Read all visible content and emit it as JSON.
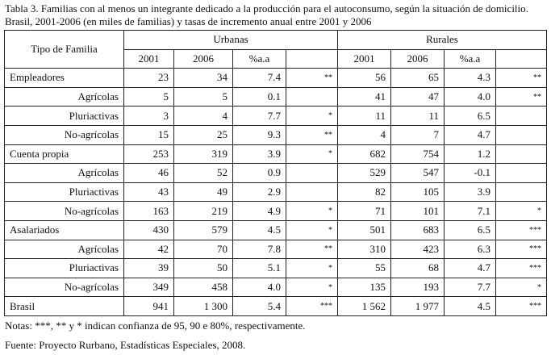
{
  "caption": "Tabla 3. Familias con al menos un integrante dedicado a la producción para el autoconsumo, según la situación de domicilio. Brasil, 2001-2006 (en miles de familias) y tasas de incremento anual entre 2001 y 2006",
  "header": {
    "row_label": "Tipo de Familia",
    "groups": [
      "Urbanas",
      "Rurales"
    ],
    "subcols": [
      "2001",
      "2006",
      "%a.a",
      ""
    ]
  },
  "rows": [
    {
      "label": "Empleadores",
      "sub": false,
      "u": [
        "23",
        "34",
        "7.4",
        "**"
      ],
      "r": [
        "56",
        "65",
        "4.3",
        "**"
      ]
    },
    {
      "label": "Agrícolas",
      "sub": true,
      "u": [
        "5",
        "5",
        "0.1",
        ""
      ],
      "r": [
        "41",
        "47",
        "4.0",
        "**"
      ]
    },
    {
      "label": "Pluriactivas",
      "sub": true,
      "u": [
        "3",
        "4",
        "7.7",
        "*"
      ],
      "r": [
        "11",
        "11",
        "6.5",
        ""
      ]
    },
    {
      "label": "No-agrícolas",
      "sub": true,
      "u": [
        "15",
        "25",
        "9.3",
        "**"
      ],
      "r": [
        "4",
        "7",
        "4.7",
        ""
      ]
    },
    {
      "label": "Cuenta propia",
      "sub": false,
      "u": [
        "253",
        "319",
        "3.9",
        "*"
      ],
      "r": [
        "682",
        "754",
        "1.2",
        ""
      ]
    },
    {
      "label": "Agrícolas",
      "sub": true,
      "u": [
        "46",
        "52",
        "0.9",
        ""
      ],
      "r": [
        "529",
        "547",
        "-0.1",
        ""
      ]
    },
    {
      "label": "Pluriactivas",
      "sub": true,
      "u": [
        "43",
        "49",
        "2.9",
        ""
      ],
      "r": [
        "82",
        "105",
        "3.9",
        ""
      ]
    },
    {
      "label": "No-agrícolas",
      "sub": true,
      "u": [
        "163",
        "219",
        "4.9",
        "*"
      ],
      "r": [
        "71",
        "101",
        "7.1",
        "*"
      ]
    },
    {
      "label": "Asalariados",
      "sub": false,
      "u": [
        "430",
        "579",
        "4.5",
        "*"
      ],
      "r": [
        "501",
        "683",
        "6.5",
        "***"
      ]
    },
    {
      "label": "Agrícolas",
      "sub": true,
      "u": [
        "42",
        "70",
        "7.8",
        "**"
      ],
      "r": [
        "310",
        "423",
        "6.3",
        "***"
      ]
    },
    {
      "label": "Pluriactivas",
      "sub": true,
      "u": [
        "39",
        "50",
        "5.1",
        "*"
      ],
      "r": [
        "55",
        "68",
        "4.7",
        "***"
      ]
    },
    {
      "label": "No-agrícolas",
      "sub": true,
      "u": [
        "349",
        "458",
        "4.0",
        "*"
      ],
      "r": [
        "135",
        "193",
        "7.7",
        "*"
      ]
    },
    {
      "label": "Brasil",
      "sub": false,
      "u": [
        "941",
        "1 300",
        "5.4",
        "***"
      ],
      "r": [
        "1 562",
        "1 977",
        "4.5",
        "***"
      ]
    }
  ],
  "notes": "Notas: ***, ** y * indican confianza de 95, 90 e 80%, respectivamente.",
  "source": "Fuente: Proyecto Rurbano, Estadísticas Especiales, 2008."
}
